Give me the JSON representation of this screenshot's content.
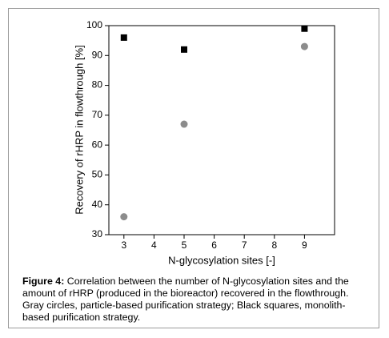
{
  "chart_data": {
    "type": "scatter",
    "y_label": "Recovery of rHRP in flowthrough [%]",
    "x_label": "N-glycosylation sites [-]",
    "caption_label": "Figure 4:",
    "caption": "Correlation between the number of N-glycosylation sites and the amount of rHRP (produced in the bioreactor) recovered in the flowthrough. Gray circles, particle-based purification strategy; Black squares, monolith-based purification strategy.",
    "xlim": [
      2.5,
      10
    ],
    "xticks": [
      3,
      4,
      5,
      6,
      7,
      8,
      9
    ],
    "ylim": [
      30,
      100
    ],
    "yticks": [
      30,
      40,
      50,
      60,
      70,
      80,
      90,
      100
    ],
    "series": [
      {
        "color": "#000000",
        "marker": "square",
        "x": [
          3,
          5,
          9
        ],
        "values": [
          96,
          92,
          99
        ]
      },
      {
        "color": "#8c8c8c",
        "marker": "circle",
        "x": [
          3,
          5,
          9
        ],
        "values": [
          36,
          67,
          93
        ]
      }
    ]
  }
}
